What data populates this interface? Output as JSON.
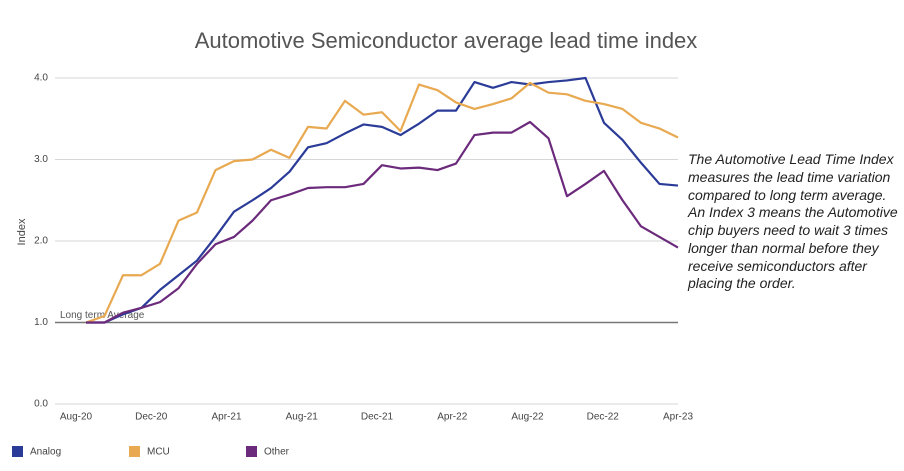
{
  "chart_data": {
    "type": "line",
    "title": "Automotive Semiconductor average lead time index",
    "ylabel": "Index",
    "annotation": "The Automotive Lead Time Index measures the lead time variation compared to long term average. An Index 3 means the Automotive chip buyers need to wait 3 times longer than normal before they receive semiconductors after placing the order.",
    "reference_line": {
      "value": 1,
      "label": "Long term Average",
      "color": "#777777"
    },
    "categories": [
      "Aug-20",
      null,
      null,
      null,
      "Dec-20",
      null,
      null,
      null,
      "Apr-21",
      null,
      null,
      null,
      "Aug-21",
      null,
      null,
      null,
      "Dec-21",
      null,
      null,
      null,
      "Apr-22",
      null,
      null,
      null,
      "Aug-22",
      null,
      null,
      null,
      "Dec-22",
      null,
      null,
      null,
      "Apr-23"
    ],
    "series": [
      {
        "name": "Analog",
        "color": "#2b3b98",
        "values": [
          1.0,
          1.0,
          1.1,
          1.18,
          1.4,
          1.58,
          1.76,
          2.05,
          2.36,
          2.5,
          2.65,
          2.85,
          3.15,
          3.2,
          3.32,
          3.43,
          3.4,
          3.3,
          3.44,
          3.6,
          3.6,
          3.95,
          3.88,
          3.95,
          3.92,
          3.95,
          3.97,
          4.0,
          3.45,
          3.24,
          2.96,
          2.7,
          2.68
        ]
      },
      {
        "name": "MCU",
        "color": "#e8a950",
        "values": [
          1.0,
          1.08,
          1.58,
          1.58,
          1.72,
          2.25,
          2.35,
          2.87,
          2.98,
          3.0,
          3.12,
          3.02,
          3.4,
          3.38,
          3.72,
          3.55,
          3.58,
          3.35,
          3.92,
          3.85,
          3.7,
          3.62,
          3.68,
          3.75,
          3.94,
          3.82,
          3.8,
          3.72,
          3.68,
          3.62,
          3.45,
          3.38,
          3.27
        ]
      },
      {
        "name": "Other",
        "color": "#6b2a7b",
        "values": [
          1.0,
          1.0,
          1.12,
          1.18,
          1.25,
          1.42,
          1.72,
          1.96,
          2.05,
          2.25,
          2.5,
          2.57,
          2.65,
          2.66,
          2.66,
          2.7,
          2.93,
          2.89,
          2.9,
          2.87,
          2.95,
          3.3,
          3.33,
          3.33,
          3.46,
          3.26,
          2.55,
          2.7,
          2.86,
          2.5,
          2.18,
          2.05,
          1.92
        ]
      }
    ],
    "ylim": [
      0,
      4
    ],
    "yticks": [
      {
        "value": 0,
        "label": "0.0"
      },
      {
        "value": 1,
        "label": "1.0"
      },
      {
        "value": 2,
        "label": "2.0"
      },
      {
        "value": 3,
        "label": "3.0"
      },
      {
        "value": 4,
        "label": "4.0"
      }
    ],
    "grid": true,
    "legend": "bottom"
  }
}
